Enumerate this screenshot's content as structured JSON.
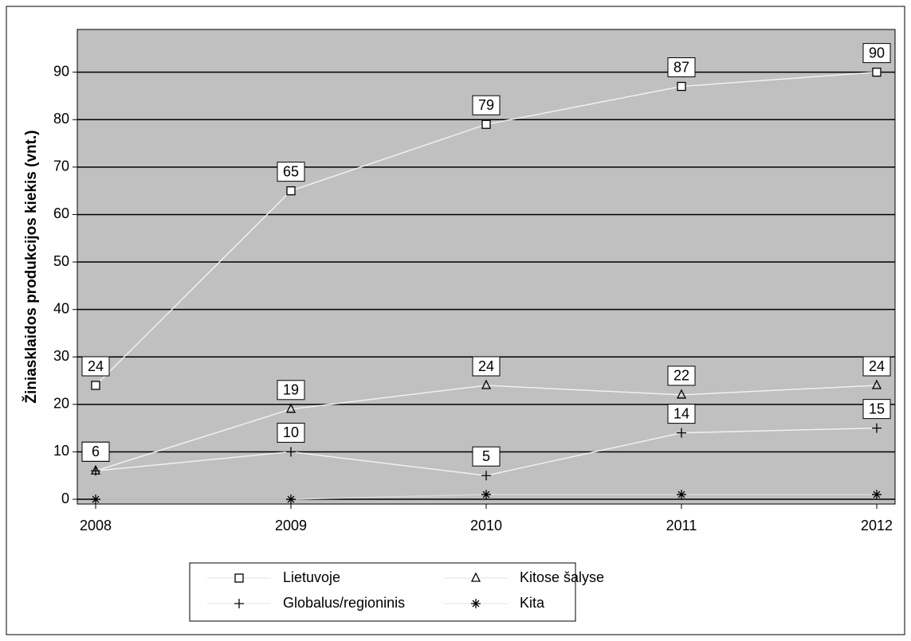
{
  "chart_data": {
    "type": "line",
    "y_label": "Žiniasklaidos produkcijos kiekis (vnt.)",
    "categories": [
      "2008",
      "2009",
      "2010",
      "2011",
      "2012"
    ],
    "series": [
      {
        "name": "Lietuvoje",
        "color": "#f0f0f0",
        "marker": "square",
        "data_labels": true,
        "values": [
          24,
          65,
          79,
          87,
          90
        ]
      },
      {
        "name": "Kitose šalyse",
        "color": "#f0f0f0",
        "marker": "triangle",
        "data_labels": true,
        "values": [
          6,
          19,
          24,
          22,
          24
        ]
      },
      {
        "name": "Globalus/regioninis",
        "color": "#f0f0f0",
        "marker": "plus",
        "data_labels": true,
        "values": [
          6,
          10,
          5,
          14,
          15
        ]
      },
      {
        "name": "Kita",
        "color": "#d8d8d8",
        "marker": "asterisk",
        "data_labels": false,
        "values": [
          0,
          0,
          1,
          1,
          1
        ]
      }
    ],
    "ylim": [
      -1,
      99
    ],
    "yticks": [
      0,
      10,
      20,
      30,
      40,
      50,
      60,
      70,
      80,
      90
    ],
    "grid": true,
    "plot_background": "#c0c0c0",
    "legend": "bottom"
  }
}
